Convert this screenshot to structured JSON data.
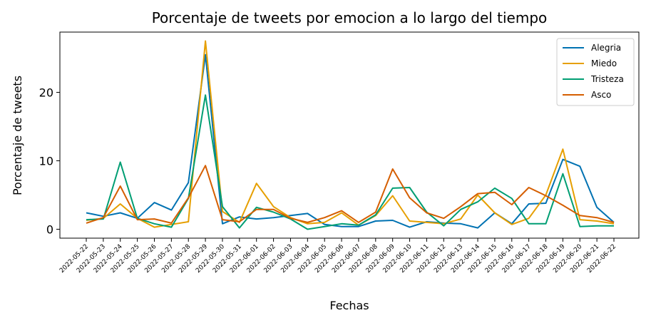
{
  "chart_data": {
    "type": "line",
    "title": "Porcentaje de tweets por emocion a lo largo del tiempo",
    "xlabel": "Fechas",
    "ylabel": "Porcentaje de tweets",
    "ylim": [
      -1.3,
      28.8
    ],
    "yticks": [
      0,
      10,
      20
    ],
    "grid": false,
    "legend_position": "top-right",
    "x": [
      "2022-05-22",
      "2022-05-23",
      "2022-05-24",
      "2022-05-25",
      "2022-05-26",
      "2022-05-27",
      "2022-05-28",
      "2022-05-29",
      "2022-05-30",
      "2022-05-31",
      "2022-06-01",
      "2022-06-02",
      "2022-06-03",
      "2022-06-04",
      "2022-06-05",
      "2022-06-06",
      "2022-06-07",
      "2022-06-08",
      "2022-06-09",
      "2022-06-10",
      "2022-06-11",
      "2022-06-12",
      "2022-06-13",
      "2022-06-14",
      "2022-06-15",
      "2022-06-16",
      "2022-06-17",
      "2022-06-18",
      "2022-06-19",
      "2022-06-20",
      "2022-06-21",
      "2022-06-22"
    ],
    "series": [
      {
        "name": "Alegria",
        "color": "#0072b2",
        "values": [
          2.4,
          1.9,
          2.4,
          1.6,
          3.9,
          2.8,
          6.8,
          25.5,
          0.8,
          1.8,
          1.5,
          1.7,
          2.0,
          2.3,
          0.7,
          0.4,
          0.4,
          1.2,
          1.3,
          0.3,
          1.1,
          0.9,
          0.8,
          0.2,
          2.4,
          0.8,
          3.7,
          3.8,
          10.2,
          9.2,
          3.2,
          1.0
        ]
      },
      {
        "name": "Miedo",
        "color": "#e69f00",
        "values": [
          1.3,
          1.6,
          3.7,
          1.6,
          0.3,
          0.7,
          1.1,
          27.5,
          2.6,
          1.0,
          6.7,
          3.3,
          1.7,
          0.8,
          1.0,
          2.4,
          0.6,
          2.0,
          4.9,
          1.2,
          1.0,
          0.8,
          1.5,
          5.0,
          2.4,
          0.7,
          1.6,
          5.0,
          11.7,
          1.4,
          1.2,
          0.8
        ]
      },
      {
        "name": "Tristeza",
        "color": "#009e73",
        "values": [
          1.4,
          1.5,
          9.8,
          1.6,
          0.8,
          0.3,
          4.5,
          19.6,
          3.3,
          0.2,
          3.2,
          2.5,
          1.5,
          0.0,
          0.4,
          0.8,
          0.6,
          2.1,
          6.0,
          6.1,
          2.5,
          0.5,
          2.9,
          4.0,
          6.0,
          4.5,
          0.8,
          0.8,
          8.1,
          0.4,
          0.5,
          0.5
        ]
      },
      {
        "name": "Asco",
        "color": "#d55e00",
        "values": [
          0.9,
          1.7,
          6.3,
          1.4,
          1.5,
          0.9,
          4.6,
          9.3,
          1.4,
          1.1,
          2.9,
          2.9,
          1.6,
          1.0,
          1.7,
          2.7,
          1.0,
          2.5,
          8.8,
          4.6,
          2.4,
          1.6,
          3.3,
          5.2,
          5.4,
          3.6,
          6.1,
          4.9,
          3.5,
          2.0,
          1.7,
          1.0
        ]
      }
    ]
  }
}
